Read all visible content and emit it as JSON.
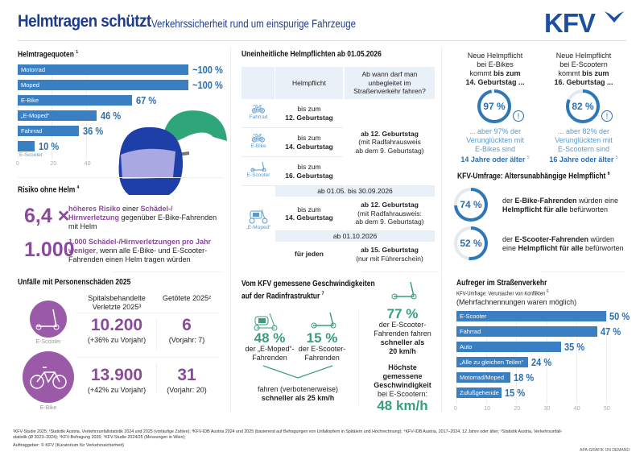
{
  "header": {
    "title": "Helmtragen schützt",
    "subtitle": "Verkehrssicherheit rund um einspurige Fahrzeuge",
    "logo": "KFV"
  },
  "colors": {
    "blue": "#3a7fc1",
    "dark_blue": "#1d3c8c",
    "purple": "#8a4a9a",
    "green": "#3a9e7a"
  },
  "helmet_rates": {
    "title": "Helmtragequoten",
    "note": "1",
    "ticks": [
      "0",
      "20",
      "40"
    ],
    "items": [
      {
        "label": "Motorrad",
        "value": 100,
        "display": "~100 %"
      },
      {
        "label": "Moped",
        "value": 100,
        "display": "~100 %"
      },
      {
        "label": "E-Bike",
        "value": 67,
        "display": "67 %"
      },
      {
        "label": "„E-Moped“",
        "value": 46,
        "display": "46 %"
      },
      {
        "label": "Fahrrad",
        "value": 36,
        "display": "36 %"
      },
      {
        "label": "E-Scooter",
        "value": 10,
        "display": "10 %"
      }
    ]
  },
  "risk": {
    "title": "Risiko ohne Helm",
    "note": "4",
    "r1": {
      "big": "6,4 ×",
      "a": "höheres Risiko",
      "b": " einer ",
      "c": "Schädel-/ Hirnverletzung",
      "d": " gegenüber E-Bike-Fahrenden mit Helm"
    },
    "r2": {
      "big": "1.000",
      "a": "1.000 Schädel-/Hirnverletzungen pro Jahr weniger",
      "b": ", wenn alle E-Bike- und E-Scooter-Fahrenden einen Helm tragen würden"
    }
  },
  "accidents": {
    "title": "Unfälle mit Personenschäden 2025",
    "col1": "Spitalsbehandelte Verletzte 2025³",
    "col2": "Getötete 2025²",
    "rows": [
      {
        "label": "E-Scooter",
        "injured": "10.200",
        "injured_change": "(+36% zu Vorjahr)",
        "killed": "6",
        "killed_prev": "(Vorjahr: 7)"
      },
      {
        "label": "E-Bike",
        "injured": "13.900",
        "injured_change": "(+42% zu Vorjahr)",
        "killed": "31",
        "killed_prev": "(Vorjahr: 20)"
      }
    ]
  },
  "table": {
    "title": "Uneinheitliche Helmpflichten ab 01.05.2026",
    "col1": "Helmpflicht",
    "col2": "Ab wann darf man unbegleitet im Straßenverkehr fahren?",
    "rows": [
      {
        "icon": "Fahrrad",
        "a": "bis zum",
        "b": "12. Geburtstag"
      },
      {
        "icon": "E-Bike",
        "a": "bis zum",
        "b": "14. Geburtstag"
      },
      {
        "icon": "E-Scooter",
        "a": "bis zum",
        "b": "16. Geburtstag"
      }
    ],
    "merged": {
      "a": "ab 12. Geburtstag",
      "b": "(mit Radfahrausweis",
      "c": "ab dem 9. Geburtstag)"
    },
    "band1": "ab 01.05. bis 30.09.2026",
    "moped_label": "„E-Moped“",
    "moped1": {
      "a": "bis zum",
      "b": "14. Geburtstag",
      "c": "ab 12. Geburtstag",
      "d": "(mit Radfahrausweis:",
      "e": "ab dem 9. Geburtstag)"
    },
    "band2": "ab 01.10.2026",
    "moped2": {
      "a": "für jeden",
      "c": "ab 15. Geburtstag",
      "d": "(nur mit Führerschein)"
    }
  },
  "new_duty": [
    {
      "l1": "Neue Helmpflicht",
      "l2": "bei E-Bikes",
      "l3": "kommt ",
      "l3b": "bis zum",
      "l4": "14. Geburtstag ...",
      "value": 97,
      "pct": "97 %",
      "b1": "... aber 97% der",
      "b2": "Verunglückten mit",
      "b3": "E-Bikes sind",
      "b4": "14 Jahre oder älter",
      "note": "5"
    },
    {
      "l1": "Neue Helmpflicht",
      "l2": "bei E-Scootern",
      "l3": "kommt ",
      "l3b": "bis zum",
      "l4": "16. Geburtstag ...",
      "value": 82,
      "pct": "82 %",
      "b1": "... aber 82% der",
      "b2": "Verunglückten mit",
      "b3": "E-Scootern sind",
      "b4": "16 Jahre oder älter",
      "note": "5"
    }
  ],
  "survey": {
    "title": "KFV-Umfrage: Altersunabhängige Helmpflicht",
    "note": "6",
    "items": [
      {
        "value": 74,
        "pct": "74 %",
        "a": "der ",
        "b": "E-Bike-Fahrenden",
        "c": " würden eine",
        "d": "Helmpflicht für alle",
        "e": " befürworten"
      },
      {
        "value": 52,
        "pct": "52 %",
        "a": "der ",
        "b": "E-Scooter-Fahrenden",
        "c": " würden",
        "d": "eine ",
        "e2": "Helmpflicht für alle",
        "e": " befürworten"
      }
    ]
  },
  "speed": {
    "title1": "Vom KFV gemessene Geschwindigkeiten",
    "title2": "auf der Radinfrastruktur",
    "note": "7",
    "moped": {
      "pct": "48 %",
      "l1": "der „E-Moped“-",
      "l2": "Fahrenden"
    },
    "scooter": {
      "pct": "15 %",
      "l1": "der E-Scooter-",
      "l2": "Fahrenden"
    },
    "both1": "fahren (verbotenerweise)",
    "both2": "schneller als 25 km/h",
    "right": {
      "pct": "77 %",
      "l1": "der E-Scooter-",
      "l2": "Fahrenden fahren",
      "l3": "schneller als",
      "l4": "20 km/h",
      "m1": "Höchste",
      "m2": "gemessene",
      "m3": "Geschwindigkeit",
      "m4": "bei E-Scootern:",
      "max": "48 km/h"
    }
  },
  "annoy": {
    "title": "Aufreger im Straßenverkehr",
    "subtitle": "KFV-Umfrage: Verursacher von Konflikten",
    "note": "6",
    "remark": "(Mehrfachnennungen waren möglich)",
    "ticks": [
      "0",
      "10",
      "20",
      "30",
      "40",
      "50"
    ],
    "items": [
      {
        "label": "E-Scooter",
        "value": 50,
        "display": "50 %"
      },
      {
        "label": "Fahrrad",
        "value": 47,
        "display": "47 %"
      },
      {
        "label": "Auto",
        "value": 35,
        "display": "35 %"
      },
      {
        "label": "„Alle zu gleichen Teilen“",
        "value": 24,
        "display": "24 %"
      },
      {
        "label": "Motorrad/Moped",
        "value": 18,
        "display": "18 %"
      },
      {
        "label": "Zufußgehende",
        "value": 15,
        "display": "15 %"
      }
    ]
  },
  "footer": {
    "notes1": "¹KFV-Studie 2025; ²Statistik Austria, Verkehrsunfallstatistik 2024 und 2025 (vorläufige Zahlen); ³KFV-IDB Austria 2024 und 2025 (basierend auf Befragungen von Unfallopfern in Spitälern und Hochrechnung); ⁴KFV-IDB Austria, 2017–2024, 12 Jahre oder älter; ⁵Statistik Austria, Verkehrsunfall-",
    "notes2": "statistik (Ø 2023–2024); ⁶KFV-Befragung 2026; ⁷KFV-Studie 2024/25 (Messungen in Wien);",
    "client": "Auftraggeber: © KFV (Kuratorium für Verkehrssicherheit)",
    "credit": "APA-GRAFIK ON DEMAND"
  }
}
